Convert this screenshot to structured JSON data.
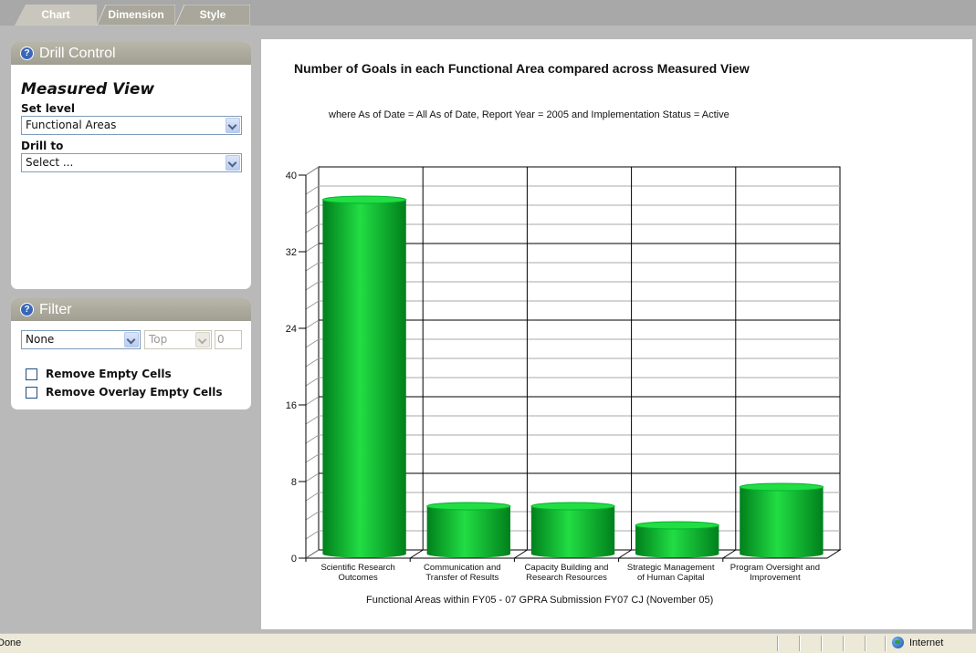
{
  "tabs": [
    {
      "label": "Chart",
      "active": true
    },
    {
      "label": "Dimension",
      "active": false
    },
    {
      "label": "Style",
      "active": false
    }
  ],
  "drill_control": {
    "header": "Drill Control",
    "title": "Measured View",
    "set_level_label": "Set level",
    "set_level_value": "Functional Areas",
    "drill_to_label": "Drill to",
    "drill_to_value": "Select ..."
  },
  "filter": {
    "header": "Filter",
    "filter_value": "None",
    "top_value": "Top",
    "count_value": "0",
    "remove_empty_cells": "Remove Empty Cells",
    "remove_overlay_empty_cells": "Remove Overlay Empty Cells"
  },
  "status": {
    "text": "Done",
    "zone": "Internet"
  },
  "icons": {
    "help": "help-icon",
    "dropdown": "chevron-down-icon",
    "globe": "globe-icon"
  },
  "colors": {
    "bar_light": "#22dd44",
    "bar_mid": "#00b52e",
    "bar_dark": "#00801c"
  },
  "chart_data": {
    "type": "bar",
    "title": "Number of Goals in each Functional Area compared across Measured View",
    "subtitle": "where As of Date = All As of Date,  Report Year = 2005  and  Implementation Status = Active",
    "xlabel": "Functional Areas within FY05 - 07 GPRA Submission FY07 CJ (November 05)",
    "ylabel": "",
    "categories": [
      [
        "Scientific Research",
        "Outcomes"
      ],
      [
        "Communication and",
        "Transfer of Results"
      ],
      [
        "Capacity Building and",
        "Research Resources"
      ],
      [
        "Strategic Management",
        "of Human Capital"
      ],
      [
        "Program Oversight and",
        "Improvement"
      ]
    ],
    "values": [
      37,
      5,
      5,
      3,
      7
    ],
    "ylim": [
      0,
      40
    ],
    "yticks": [
      0,
      8,
      16,
      24,
      32,
      40
    ],
    "grid": true,
    "legend": "none"
  }
}
